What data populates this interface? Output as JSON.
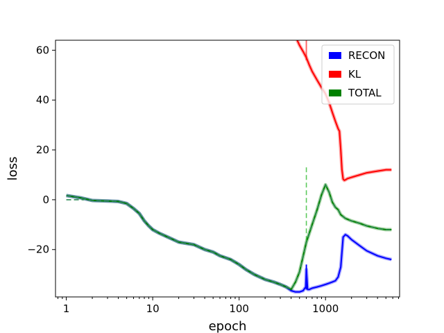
{
  "chart_data": {
    "type": "line",
    "xscale": "log",
    "xlabel": "epoch",
    "ylabel": "loss",
    "xlim": [
      0.75,
      7200
    ],
    "ylim": [
      -39,
      64
    ],
    "x_ticks": [
      1,
      10,
      100,
      1000
    ],
    "x_tick_labels": [
      "1",
      "10",
      "100",
      "1000"
    ],
    "y_ticks": [
      -20,
      0,
      20,
      40,
      60
    ],
    "y_tick_labels": [
      "−20",
      "0",
      "20",
      "40",
      "60"
    ],
    "grid": false,
    "legend_placement": "top-right",
    "legend": [
      "RECON",
      "KL",
      "TOTAL"
    ],
    "series": [
      {
        "name": "RECON",
        "color": "#0000ff",
        "x": [
          1,
          1.5,
          2,
          3,
          4,
          5,
          6,
          7,
          8,
          9,
          10,
          12,
          15,
          20,
          30,
          40,
          50,
          60,
          80,
          100,
          120,
          150,
          200,
          250,
          300,
          350,
          400,
          450,
          500,
          550,
          590,
          600,
          620,
          650,
          700,
          800,
          900,
          1000,
          1100,
          1200,
          1300,
          1400,
          1500,
          1600,
          1700,
          1800,
          2000,
          2500,
          3000,
          4000,
          5000,
          5800
        ],
        "values": [
          1.7,
          0.7,
          -0.3,
          -0.5,
          -0.7,
          -1.5,
          -3.5,
          -5.5,
          -8.5,
          -10.5,
          -12,
          -13.5,
          -15,
          -17,
          -18,
          -20,
          -21,
          -22.5,
          -24,
          -26,
          -28,
          -30,
          -32,
          -33,
          -34,
          -35,
          -36.5,
          -37,
          -37,
          -36.5,
          -35,
          -28,
          -36,
          -36,
          -35.5,
          -35,
          -34.5,
          -34,
          -33.5,
          -33,
          -32.5,
          -31,
          -27,
          -15,
          -14,
          -14.5,
          -16,
          -18.5,
          -20.5,
          -22.5,
          -23.5,
          -24
        ]
      },
      {
        "name": "KL",
        "color": "#ff0000",
        "x": [
          470,
          500,
          550,
          600,
          650,
          700,
          800,
          900,
          1000,
          1100,
          1200,
          1300,
          1400,
          1450,
          1500,
          1550,
          1600,
          1650,
          1700,
          1800,
          2000,
          2500,
          3000,
          4000,
          5000,
          5800
        ],
        "values": [
          64,
          62,
          59.5,
          57,
          54,
          51.5,
          48,
          45,
          42.5,
          39,
          35,
          31.5,
          28.5,
          27.5,
          20,
          12,
          8.3,
          7.8,
          8,
          8.5,
          9,
          10,
          10.8,
          11.5,
          12,
          12
        ]
      },
      {
        "name": "TOTAL",
        "color": "#008000",
        "dashed_overlay_color": "#2e8b57",
        "x": [
          1,
          1.5,
          2,
          3,
          4,
          5,
          6,
          7,
          8,
          9,
          10,
          12,
          15,
          20,
          30,
          40,
          50,
          60,
          80,
          100,
          120,
          150,
          200,
          250,
          300,
          350,
          400,
          450,
          500,
          600,
          700,
          800,
          900,
          1000,
          1100,
          1200,
          1300,
          1400,
          1500,
          1700,
          2000,
          2500,
          3000,
          4000,
          5000,
          5800
        ],
        "values": [
          1.7,
          0.7,
          -0.3,
          -0.5,
          -0.7,
          -1.5,
          -3.5,
          -5.5,
          -8.5,
          -10.5,
          -12,
          -13.5,
          -15,
          -17,
          -18,
          -20,
          -21,
          -22.5,
          -24,
          -26,
          -28,
          -30,
          -32,
          -33,
          -34,
          -35,
          -36,
          -33,
          -29,
          -17,
          -10,
          -4,
          2,
          6,
          3,
          -1,
          -3,
          -4,
          -6,
          -7.5,
          -8.5,
          -9.5,
          -10.5,
          -11.5,
          -12,
          -12
        ]
      }
    ]
  }
}
